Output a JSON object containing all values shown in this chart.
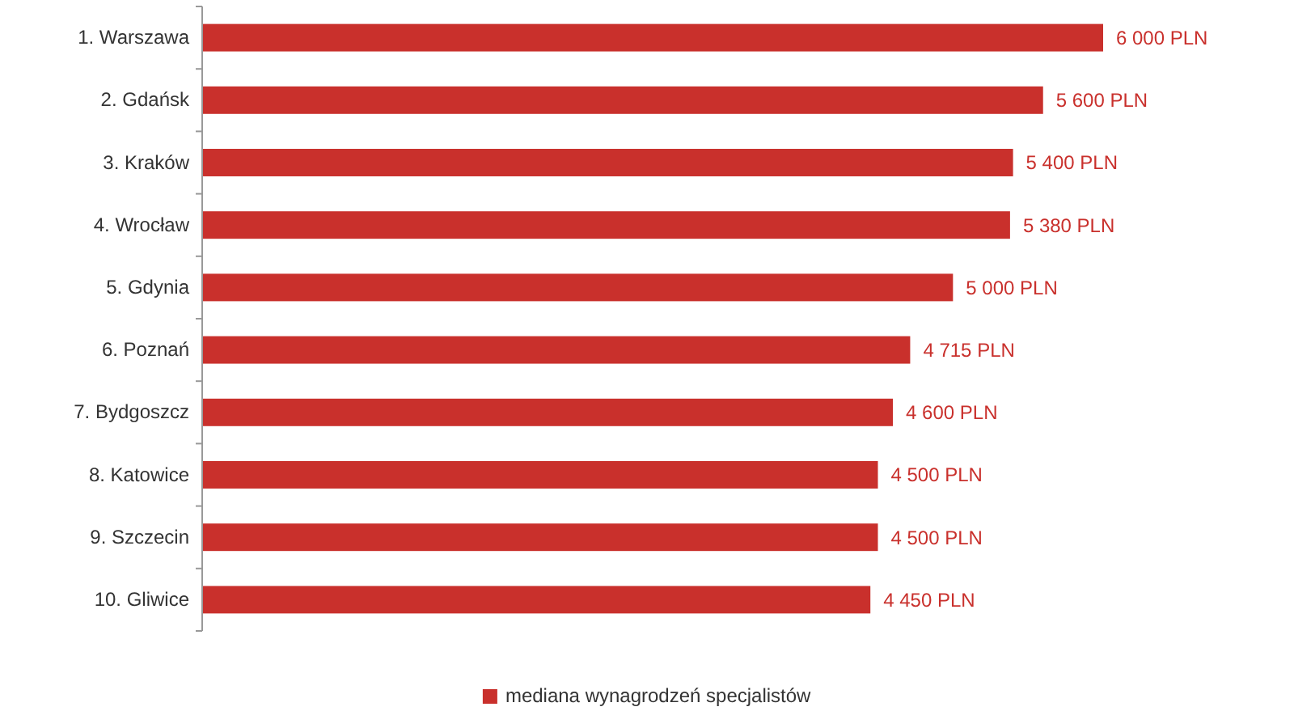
{
  "chart_data": {
    "type": "bar",
    "orientation": "horizontal",
    "categories": [
      "1. Warszawa",
      "2. Gdańsk",
      "3. Kraków",
      "4. Wrocław",
      "5. Gdynia",
      "6. Poznań",
      "7. Bydgoszcz",
      "8. Katowice",
      "9. Szczecin",
      "10. Gliwice"
    ],
    "series": [
      {
        "name": "mediana wynagrodzeń specjalistów",
        "color": "#c9302c",
        "values": [
          6000,
          5600,
          5400,
          5380,
          5000,
          4715,
          4600,
          4500,
          4500,
          4450
        ],
        "value_labels": [
          "6 000 PLN",
          "5 600 PLN",
          "5 400 PLN",
          "5 380 PLN",
          "5 000 PLN",
          "4 715 PLN",
          "4 600 PLN",
          "4 500 PLN",
          "4 500 PLN",
          "4 450 PLN"
        ]
      }
    ],
    "legend": "bottom"
  }
}
